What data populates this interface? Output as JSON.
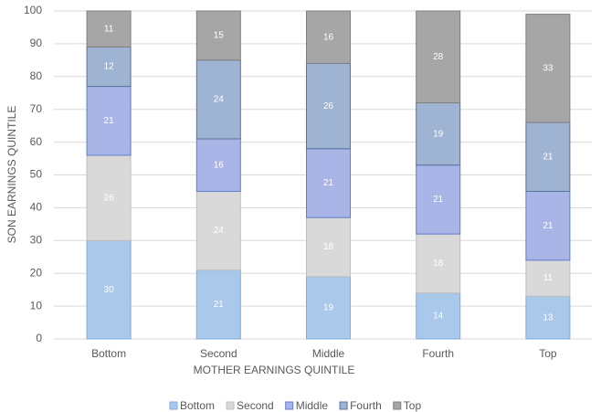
{
  "chart_data": {
    "type": "stacked_bar",
    "x_label": "MOTHER EARNINGS QUINTILE",
    "y_label": "SON EARNINGS QUINTILE",
    "categories": [
      "Bottom",
      "Second",
      "Middle",
      "Fourth",
      "Top"
    ],
    "series": [
      {
        "name": "Bottom",
        "color": "#a9c8ea",
        "values": [
          30,
          21,
          19,
          14,
          13
        ]
      },
      {
        "name": "Second",
        "color": "#d9d9d9",
        "values": [
          26,
          24,
          18,
          18,
          11
        ]
      },
      {
        "name": "Middle",
        "color": "#a8b5e6",
        "values": [
          21,
          16,
          21,
          21,
          21
        ]
      },
      {
        "name": "Fourth",
        "color": "#9fb3d2",
        "values": [
          12,
          24,
          26,
          19,
          21
        ]
      },
      {
        "name": "Top",
        "color": "#a6a6a6",
        "values": [
          11,
          15,
          16,
          28,
          33
        ]
      }
    ],
    "ylim": [
      0,
      100
    ],
    "yticks": [
      0,
      10,
      20,
      30,
      40,
      50,
      60,
      70,
      80,
      90,
      100
    ],
    "grid": true,
    "legend": "bottom"
  }
}
